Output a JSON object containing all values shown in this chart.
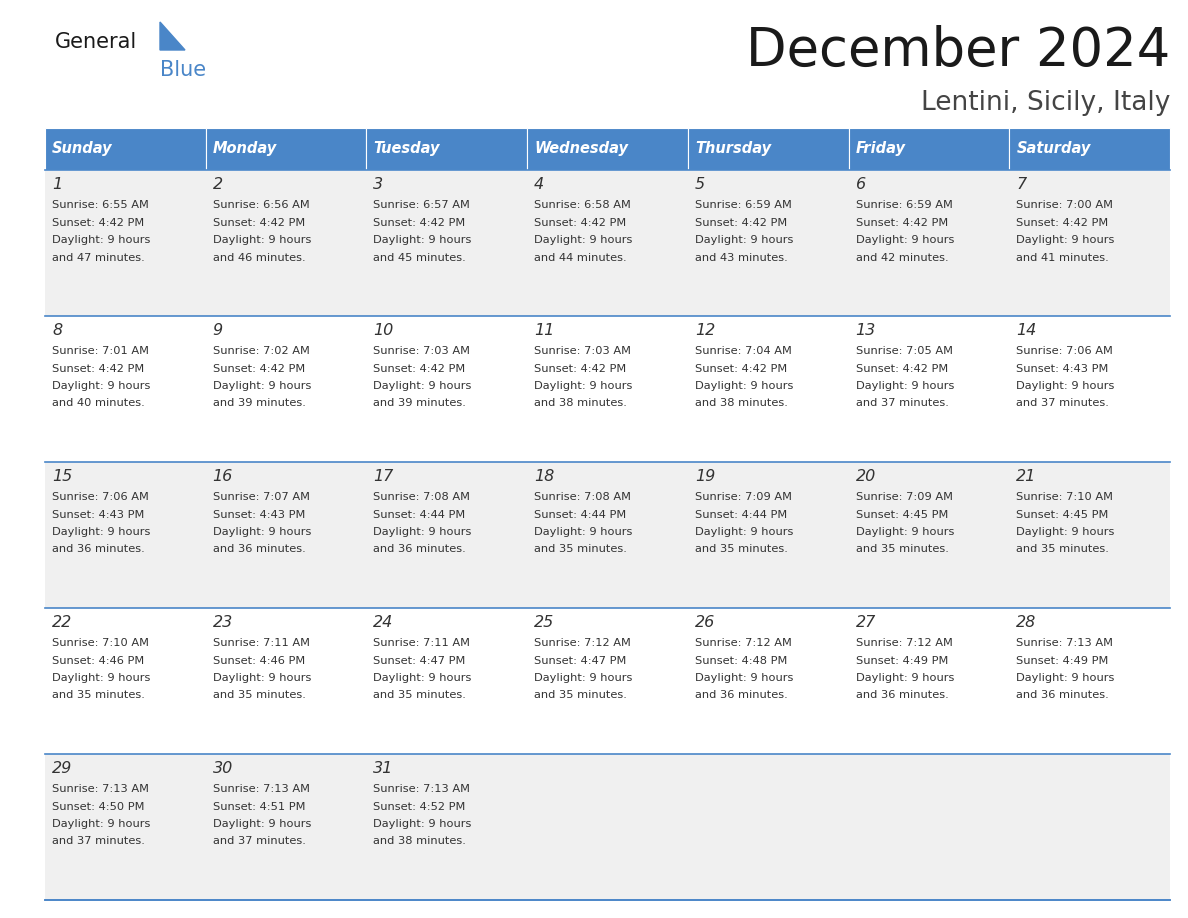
{
  "title": "December 2024",
  "subtitle": "Lentini, Sicily, Italy",
  "days_of_week": [
    "Sunday",
    "Monday",
    "Tuesday",
    "Wednesday",
    "Thursday",
    "Friday",
    "Saturday"
  ],
  "header_bg": "#4a86c8",
  "header_text": "#ffffff",
  "row_bg_odd": "#f0f0f0",
  "row_bg_even": "#ffffff",
  "cell_border": "#4a86c8",
  "day_num_color": "#333333",
  "cell_text_color": "#333333",
  "title_color": "#1a1a1a",
  "subtitle_color": "#444444",
  "calendar": [
    [
      {
        "day": 1,
        "sunrise": "6:55 AM",
        "sunset": "4:42 PM",
        "daylight": "9 hours and 47 minutes."
      },
      {
        "day": 2,
        "sunrise": "6:56 AM",
        "sunset": "4:42 PM",
        "daylight": "9 hours and 46 minutes."
      },
      {
        "day": 3,
        "sunrise": "6:57 AM",
        "sunset": "4:42 PM",
        "daylight": "9 hours and 45 minutes."
      },
      {
        "day": 4,
        "sunrise": "6:58 AM",
        "sunset": "4:42 PM",
        "daylight": "9 hours and 44 minutes."
      },
      {
        "day": 5,
        "sunrise": "6:59 AM",
        "sunset": "4:42 PM",
        "daylight": "9 hours and 43 minutes."
      },
      {
        "day": 6,
        "sunrise": "6:59 AM",
        "sunset": "4:42 PM",
        "daylight": "9 hours and 42 minutes."
      },
      {
        "day": 7,
        "sunrise": "7:00 AM",
        "sunset": "4:42 PM",
        "daylight": "9 hours and 41 minutes."
      }
    ],
    [
      {
        "day": 8,
        "sunrise": "7:01 AM",
        "sunset": "4:42 PM",
        "daylight": "9 hours and 40 minutes."
      },
      {
        "day": 9,
        "sunrise": "7:02 AM",
        "sunset": "4:42 PM",
        "daylight": "9 hours and 39 minutes."
      },
      {
        "day": 10,
        "sunrise": "7:03 AM",
        "sunset": "4:42 PM",
        "daylight": "9 hours and 39 minutes."
      },
      {
        "day": 11,
        "sunrise": "7:03 AM",
        "sunset": "4:42 PM",
        "daylight": "9 hours and 38 minutes."
      },
      {
        "day": 12,
        "sunrise": "7:04 AM",
        "sunset": "4:42 PM",
        "daylight": "9 hours and 38 minutes."
      },
      {
        "day": 13,
        "sunrise": "7:05 AM",
        "sunset": "4:42 PM",
        "daylight": "9 hours and 37 minutes."
      },
      {
        "day": 14,
        "sunrise": "7:06 AM",
        "sunset": "4:43 PM",
        "daylight": "9 hours and 37 minutes."
      }
    ],
    [
      {
        "day": 15,
        "sunrise": "7:06 AM",
        "sunset": "4:43 PM",
        "daylight": "9 hours and 36 minutes."
      },
      {
        "day": 16,
        "sunrise": "7:07 AM",
        "sunset": "4:43 PM",
        "daylight": "9 hours and 36 minutes."
      },
      {
        "day": 17,
        "sunrise": "7:08 AM",
        "sunset": "4:44 PM",
        "daylight": "9 hours and 36 minutes."
      },
      {
        "day": 18,
        "sunrise": "7:08 AM",
        "sunset": "4:44 PM",
        "daylight": "9 hours and 35 minutes."
      },
      {
        "day": 19,
        "sunrise": "7:09 AM",
        "sunset": "4:44 PM",
        "daylight": "9 hours and 35 minutes."
      },
      {
        "day": 20,
        "sunrise": "7:09 AM",
        "sunset": "4:45 PM",
        "daylight": "9 hours and 35 minutes."
      },
      {
        "day": 21,
        "sunrise": "7:10 AM",
        "sunset": "4:45 PM",
        "daylight": "9 hours and 35 minutes."
      }
    ],
    [
      {
        "day": 22,
        "sunrise": "7:10 AM",
        "sunset": "4:46 PM",
        "daylight": "9 hours and 35 minutes."
      },
      {
        "day": 23,
        "sunrise": "7:11 AM",
        "sunset": "4:46 PM",
        "daylight": "9 hours and 35 minutes."
      },
      {
        "day": 24,
        "sunrise": "7:11 AM",
        "sunset": "4:47 PM",
        "daylight": "9 hours and 35 minutes."
      },
      {
        "day": 25,
        "sunrise": "7:12 AM",
        "sunset": "4:47 PM",
        "daylight": "9 hours and 35 minutes."
      },
      {
        "day": 26,
        "sunrise": "7:12 AM",
        "sunset": "4:48 PM",
        "daylight": "9 hours and 36 minutes."
      },
      {
        "day": 27,
        "sunrise": "7:12 AM",
        "sunset": "4:49 PM",
        "daylight": "9 hours and 36 minutes."
      },
      {
        "day": 28,
        "sunrise": "7:13 AM",
        "sunset": "4:49 PM",
        "daylight": "9 hours and 36 minutes."
      }
    ],
    [
      {
        "day": 29,
        "sunrise": "7:13 AM",
        "sunset": "4:50 PM",
        "daylight": "9 hours and 37 minutes."
      },
      {
        "day": 30,
        "sunrise": "7:13 AM",
        "sunset": "4:51 PM",
        "daylight": "9 hours and 37 minutes."
      },
      {
        "day": 31,
        "sunrise": "7:13 AM",
        "sunset": "4:52 PM",
        "daylight": "9 hours and 38 minutes."
      },
      null,
      null,
      null,
      null
    ]
  ],
  "figsize": [
    11.88,
    9.18
  ],
  "dpi": 100
}
